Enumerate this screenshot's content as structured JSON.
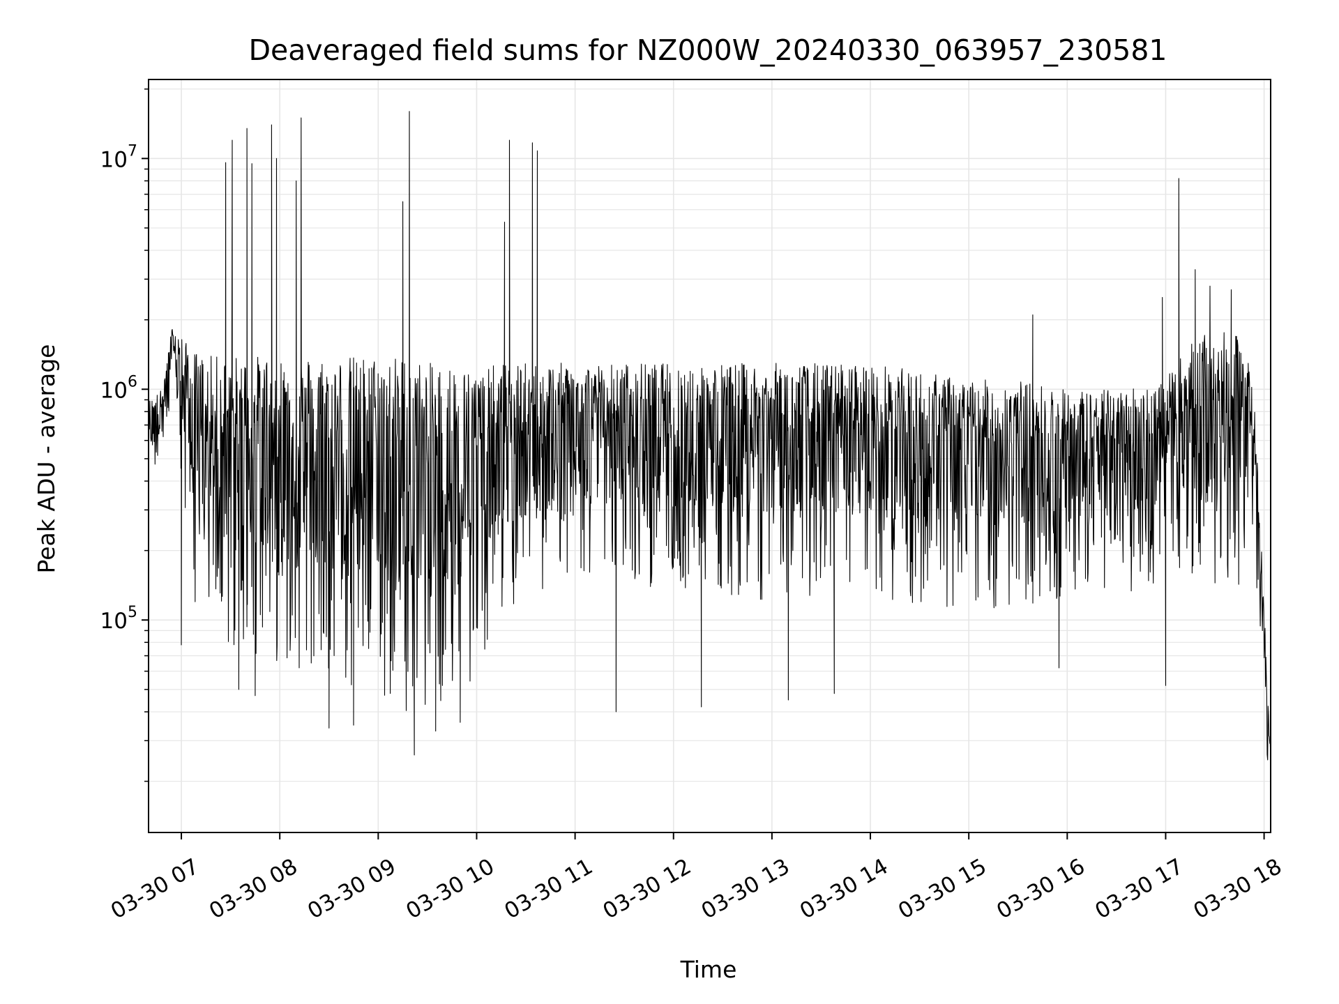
{
  "chart_data": {
    "type": "line",
    "title": "Deaveraged field sums for NZ000W_20240330_063957_230581",
    "xlabel": "Time",
    "ylabel": "Peak ADU - average",
    "xscale": "time",
    "yscale": "log",
    "grid": true,
    "line_color": "#000000",
    "grid_color": "#e6e6e6",
    "xlim": [
      "2024-03-30 06:40",
      "2024-03-30 18:04"
    ],
    "ylim": [
      12000,
      22000000
    ],
    "xticks": [
      {
        "value": "2024-03-30 07:00",
        "label": "03-30 07"
      },
      {
        "value": "2024-03-30 08:00",
        "label": "03-30 08"
      },
      {
        "value": "2024-03-30 09:00",
        "label": "03-30 09"
      },
      {
        "value": "2024-03-30 10:00",
        "label": "03-30 10"
      },
      {
        "value": "2024-03-30 11:00",
        "label": "03-30 11"
      },
      {
        "value": "2024-03-30 12:00",
        "label": "03-30 12"
      },
      {
        "value": "2024-03-30 13:00",
        "label": "03-30 13"
      },
      {
        "value": "2024-03-30 14:00",
        "label": "03-30 14"
      },
      {
        "value": "2024-03-30 15:00",
        "label": "03-30 15"
      },
      {
        "value": "2024-03-30 16:00",
        "label": "03-30 16"
      },
      {
        "value": "2024-03-30 17:00",
        "label": "03-30 17"
      },
      {
        "value": "2024-03-30 18:00",
        "label": "03-30 18"
      }
    ],
    "yticks": [
      {
        "value": 100000,
        "base": "10",
        "exp": "5"
      },
      {
        "value": 1000000,
        "base": "10",
        "exp": "6"
      },
      {
        "value": 10000000,
        "base": "10",
        "exp": "7"
      }
    ],
    "envelope": {
      "time": [
        "06:40",
        "06:48",
        "06:55",
        "07:05",
        "07:15",
        "07:25",
        "07:35",
        "07:45",
        "08:00",
        "08:15",
        "08:30",
        "08:45",
        "09:00",
        "09:15",
        "09:30",
        "09:45",
        "10:00",
        "10:15",
        "10:30",
        "10:45",
        "11:00",
        "11:30",
        "12:00",
        "12:30",
        "13:00",
        "13:30",
        "14:00",
        "14:30",
        "15:00",
        "15:30",
        "16:00",
        "16:30",
        "17:00",
        "17:15",
        "17:30",
        "17:45",
        "17:52",
        "17:56",
        "18:00",
        "18:02",
        "18:04"
      ],
      "upper": [
        900000,
        1000000,
        2000000,
        1500000,
        1400000,
        1400000,
        1400000,
        1400000,
        1400000,
        1400000,
        1400000,
        1400000,
        1400000,
        1400000,
        1300000,
        1300000,
        1200000,
        1300000,
        1300000,
        1300000,
        1300000,
        1300000,
        1300000,
        1300000,
        1300000,
        1300000,
        1300000,
        1200000,
        1100000,
        1100000,
        1000000,
        1000000,
        1100000,
        1600000,
        1800000,
        1700000,
        1500000,
        500000,
        120000,
        50000,
        30000
      ],
      "lower": [
        400000,
        500000,
        800000,
        150000,
        70000,
        70000,
        70000,
        70000,
        65000,
        60000,
        45000,
        45000,
        45000,
        40000,
        40000,
        40000,
        60000,
        100000,
        110000,
        140000,
        150000,
        150000,
        130000,
        130000,
        120000,
        120000,
        120000,
        110000,
        110000,
        110000,
        120000,
        130000,
        140000,
        140000,
        140000,
        130000,
        200000,
        100000,
        50000,
        25000,
        18000
      ]
    },
    "spikes": [
      {
        "x": "07:27",
        "y": 9600000
      },
      {
        "x": "07:31",
        "y": 12000000
      },
      {
        "x": "07:40",
        "y": 13500000
      },
      {
        "x": "07:43",
        "y": 9500000
      },
      {
        "x": "07:55",
        "y": 14000000
      },
      {
        "x": "07:58",
        "y": 10000000
      },
      {
        "x": "08:10",
        "y": 8000000
      },
      {
        "x": "08:13",
        "y": 15000000
      },
      {
        "x": "09:15",
        "y": 6500000
      },
      {
        "x": "09:19",
        "y": 16000000
      },
      {
        "x": "10:17",
        "y": 5300000
      },
      {
        "x": "10:20",
        "y": 12000000
      },
      {
        "x": "10:34",
        "y": 11700000
      },
      {
        "x": "10:37",
        "y": 10800000
      },
      {
        "x": "17:08",
        "y": 8200000
      },
      {
        "x": "16:58",
        "y": 2500000
      },
      {
        "x": "17:18",
        "y": 3300000
      },
      {
        "x": "17:27",
        "y": 2800000
      },
      {
        "x": "17:40",
        "y": 2700000
      },
      {
        "x": "15:39",
        "y": 2100000
      }
    ],
    "dips": [
      {
        "x": "07:00",
        "y": 78000
      },
      {
        "x": "07:35",
        "y": 50000
      },
      {
        "x": "07:45",
        "y": 47000
      },
      {
        "x": "08:30",
        "y": 34000
      },
      {
        "x": "08:45",
        "y": 35000
      },
      {
        "x": "09:22",
        "y": 26000
      },
      {
        "x": "09:35",
        "y": 33000
      },
      {
        "x": "09:50",
        "y": 36000
      },
      {
        "x": "11:25",
        "y": 40000
      },
      {
        "x": "12:17",
        "y": 42000
      },
      {
        "x": "13:10",
        "y": 45000
      },
      {
        "x": "13:38",
        "y": 48000
      },
      {
        "x": "15:55",
        "y": 62000
      },
      {
        "x": "17:00",
        "y": 52000
      }
    ]
  }
}
